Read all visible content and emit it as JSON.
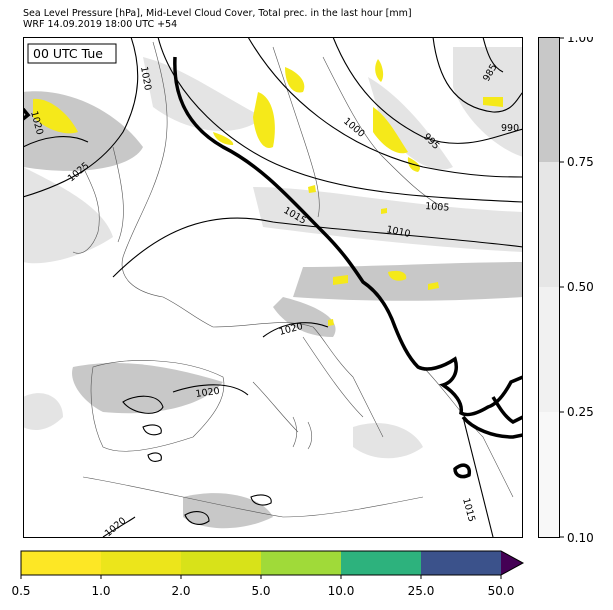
{
  "title": {
    "line1": "Sea Level Pressure [hPa], Mid-Level Cloud Cover, Total prec. in the last hour [mm]",
    "line2": "WRF 14.09.2019 18:00 UTC +54"
  },
  "map": {
    "time_label": "00 UTC Tue",
    "isobar_labels": [
      "1020",
      "1020",
      "1025",
      "1015",
      "1010",
      "1005",
      "1000",
      "995",
      "990",
      "985",
      "1020",
      "1020",
      "1020",
      "1015"
    ]
  },
  "cloud_colorbar": {
    "ticks": [
      "1.00",
      "0.75",
      "0.50",
      "0.25",
      "0.10"
    ],
    "colors": [
      "#c8c8c8",
      "#e6e6e6",
      "#f1f1f1",
      "#f8f8f8"
    ]
  },
  "precip_colorbar": {
    "ticks": [
      "0.5",
      "1.0",
      "2.0",
      "5.0",
      "10.0",
      "25.0",
      "50.0"
    ],
    "colors": [
      "#fde725",
      "#ece51b",
      "#d8e219",
      "#a0da39",
      "#4ac16d",
      "#2db27d",
      "#3b528b",
      "#440154"
    ]
  },
  "colors": {
    "precip_patch": "#f5e91a",
    "cloud_heavy": "#c8c8c8",
    "cloud_light": "#e4e4e4"
  }
}
